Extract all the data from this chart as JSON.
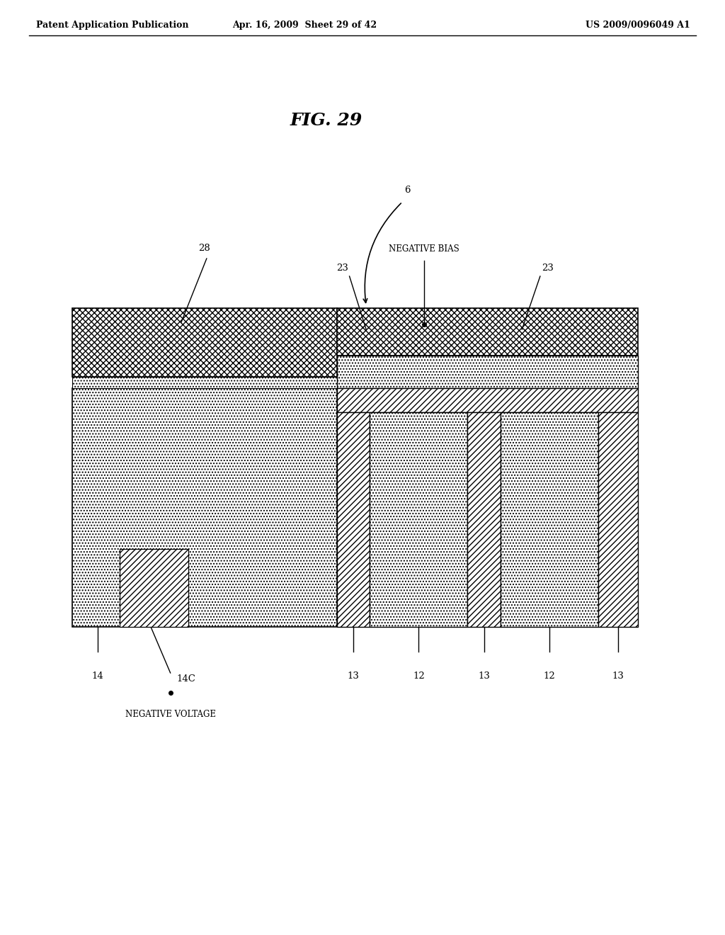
{
  "fig_label": "FIG. 29",
  "header_left": "Patent Application Publication",
  "header_mid": "Apr. 16, 2009  Sheet 29 of 42",
  "header_right": "US 2009/0096049 A1",
  "bg_color": "#ffffff",
  "text_color": "#000000",
  "label_6": "6",
  "label_28": "28",
  "label_23a": "23",
  "label_23b": "23",
  "label_14": "14",
  "label_14C": "14C",
  "label_13a": "13",
  "label_13b": "13",
  "label_13c": "13",
  "label_12a": "12",
  "label_12b": "12",
  "label_neg_bias": "NEGATIVE BIAS",
  "label_neg_voltage": "NEGATIVE VOLTAGE"
}
